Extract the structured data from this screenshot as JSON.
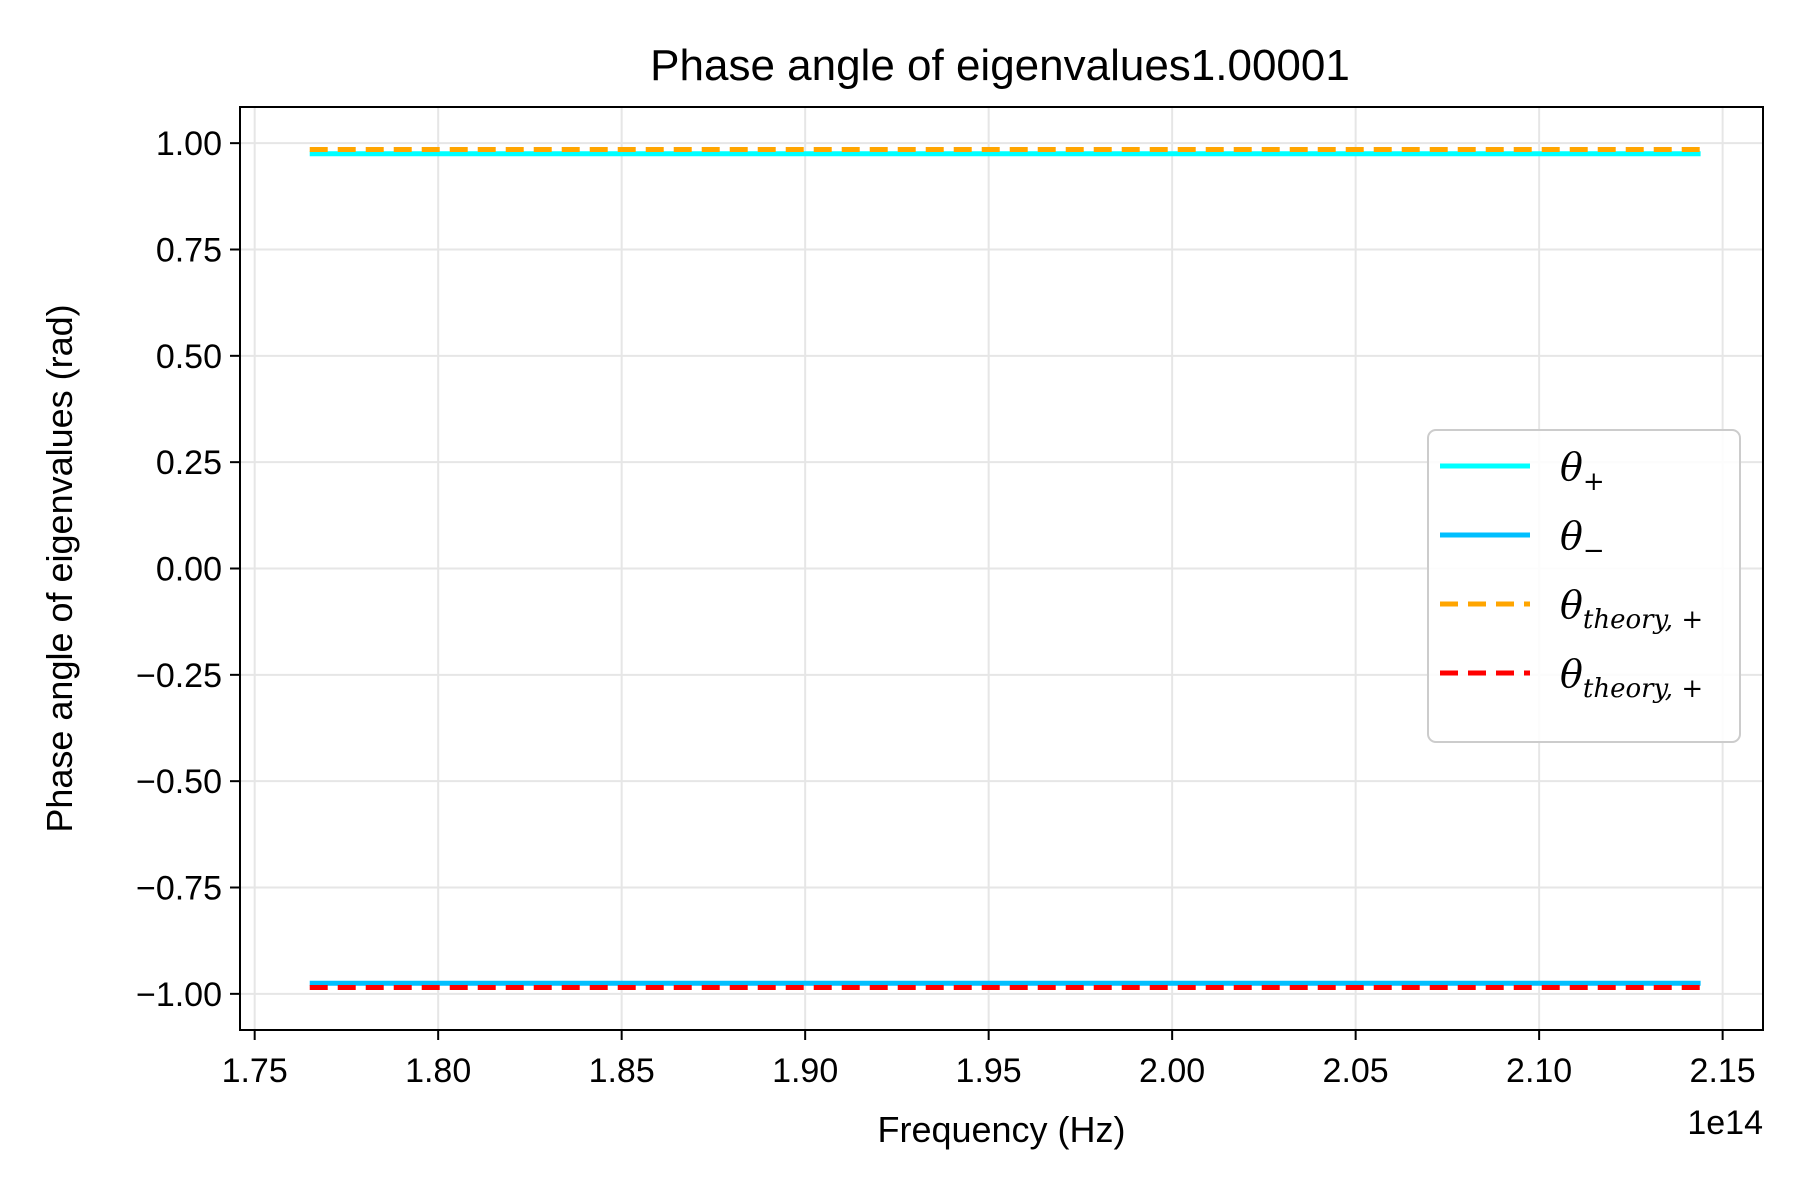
{
  "chart_data": {
    "type": "line",
    "title": "Phase angle of eigenvalues1.00001",
    "xlabel": "Frequency (Hz)",
    "ylabel": "Phase angle of eigenvalues (rad)",
    "x_offset_label": "1e14",
    "xlim": [
      1.746,
      2.161
    ],
    "ylim": [
      -1.085,
      1.085
    ],
    "x_ticks": [
      1.75,
      1.8,
      1.85,
      1.9,
      1.95,
      2.0,
      2.05,
      2.1,
      2.15
    ],
    "x_tick_labels": [
      "1.75",
      "1.80",
      "1.85",
      "1.90",
      "1.95",
      "2.00",
      "2.05",
      "2.10",
      "2.15"
    ],
    "y_ticks": [
      1.0,
      0.75,
      0.5,
      0.25,
      0.0,
      -0.25,
      -0.5,
      -0.75,
      -1.0
    ],
    "y_tick_labels": [
      "1.00",
      "0.75",
      "0.50",
      "0.25",
      "0.00",
      "−0.25",
      "−0.50",
      "−0.75",
      "−1.00"
    ],
    "grid": true,
    "legend_position": "center-right",
    "series": [
      {
        "name": "θ",
        "sub": "+",
        "color": "#00ffff",
        "style": "solid",
        "x": [
          1.765,
          2.144
        ],
        "y": [
          0.975,
          0.975
        ]
      },
      {
        "name": "θ",
        "sub": "−",
        "color": "#00bfff",
        "style": "solid",
        "x": [
          1.765,
          2.144
        ],
        "y": [
          -0.975,
          -0.975
        ]
      },
      {
        "name": "θ",
        "sub": "theory, +",
        "color": "#ffa500",
        "style": "dashed",
        "x": [
          1.765,
          2.144
        ],
        "y": [
          0.985,
          0.985
        ]
      },
      {
        "name": "θ",
        "sub": "theory, +",
        "color": "#ff0000",
        "style": "dashed",
        "x": [
          1.765,
          2.144
        ],
        "y": [
          -0.985,
          -0.985
        ]
      }
    ]
  }
}
